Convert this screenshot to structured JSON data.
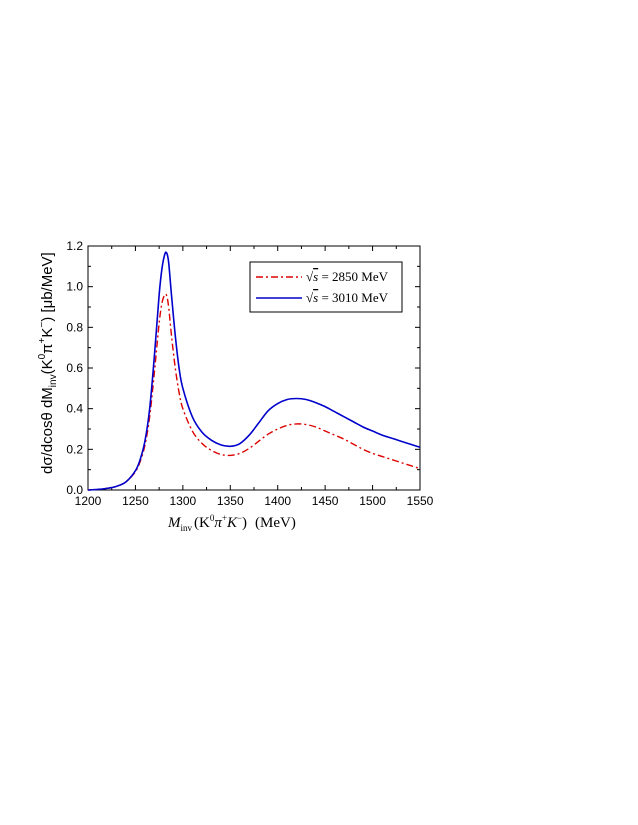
{
  "chart_data": {
    "type": "line",
    "xlabel": "M_inv(K^0 π^+ K^-)  (MeV)",
    "xlabel_parts": {
      "main": "M",
      "sub": "inv",
      "paren": "(K",
      "k0sup": "0",
      "pi": "π",
      "piplus": "+",
      "k": "K",
      "kminus": "−",
      "close": ")",
      "unit": "(MeV)"
    },
    "ylabel": "dσ/dcosθ dM_inv(K^0 π^+ K^-) [μb/MeV]",
    "ylabel_parts": {
      "a": "dσ/dcosθ dM",
      "sub": "inv",
      "b": "(K",
      "sup1": "0",
      "c": "π",
      "sup2": "+",
      "d": "K",
      "sup3": "−",
      "e": ") [μb/MeV]"
    },
    "xlim": [
      1200,
      1550
    ],
    "ylim": [
      0.0,
      1.2
    ],
    "x_ticks": [
      "1200",
      "1250",
      "1300",
      "1350",
      "1400",
      "1450",
      "1500",
      "1550"
    ],
    "y_ticks": [
      "0.0",
      "0.2",
      "0.4",
      "0.6",
      "0.8",
      "1.0",
      "1.2"
    ],
    "legend_position": "top-right",
    "grid": false,
    "series": [
      {
        "name": "√s = 2850  MeV",
        "legend_sqrt": "√",
        "legend_s": "s",
        "legend_rest": " = 2850  MeV",
        "color": "#dd0000",
        "style": "dash-dot",
        "x": [
          1200,
          1210,
          1220,
          1230,
          1240,
          1250,
          1255,
          1260,
          1265,
          1270,
          1275,
          1278,
          1281,
          1283,
          1285,
          1288,
          1292,
          1296,
          1300,
          1310,
          1320,
          1330,
          1340,
          1350,
          1360,
          1370,
          1380,
          1390,
          1400,
          1410,
          1420,
          1430,
          1440,
          1450,
          1460,
          1470,
          1480,
          1490,
          1500,
          1510,
          1520,
          1530,
          1540,
          1550
        ],
        "y": [
          0.0,
          0.003,
          0.008,
          0.018,
          0.04,
          0.09,
          0.14,
          0.22,
          0.36,
          0.58,
          0.82,
          0.92,
          0.96,
          0.955,
          0.9,
          0.76,
          0.6,
          0.48,
          0.4,
          0.29,
          0.23,
          0.195,
          0.175,
          0.17,
          0.18,
          0.205,
          0.24,
          0.275,
          0.3,
          0.318,
          0.325,
          0.322,
          0.31,
          0.29,
          0.27,
          0.25,
          0.225,
          0.2,
          0.18,
          0.165,
          0.15,
          0.135,
          0.12,
          0.105
        ]
      },
      {
        "name": "√s = 3010  MeV",
        "legend_sqrt": "√",
        "legend_s": "s",
        "legend_rest": " = 3010  MeV",
        "color": "#0000cc",
        "style": "solid",
        "x": [
          1200,
          1210,
          1220,
          1230,
          1240,
          1250,
          1255,
          1260,
          1265,
          1270,
          1275,
          1278,
          1281,
          1283,
          1285,
          1288,
          1292,
          1296,
          1300,
          1310,
          1320,
          1330,
          1340,
          1350,
          1360,
          1370,
          1380,
          1390,
          1400,
          1410,
          1420,
          1430,
          1440,
          1450,
          1460,
          1470,
          1480,
          1490,
          1500,
          1510,
          1520,
          1530,
          1540,
          1550
        ],
        "y": [
          0.0,
          0.003,
          0.008,
          0.018,
          0.04,
          0.095,
          0.15,
          0.24,
          0.4,
          0.66,
          0.96,
          1.09,
          1.16,
          1.165,
          1.12,
          0.96,
          0.76,
          0.6,
          0.5,
          0.36,
          0.285,
          0.245,
          0.222,
          0.215,
          0.228,
          0.27,
          0.33,
          0.39,
          0.425,
          0.445,
          0.45,
          0.445,
          0.43,
          0.41,
          0.385,
          0.36,
          0.335,
          0.31,
          0.29,
          0.27,
          0.255,
          0.24,
          0.225,
          0.21
        ]
      }
    ]
  }
}
